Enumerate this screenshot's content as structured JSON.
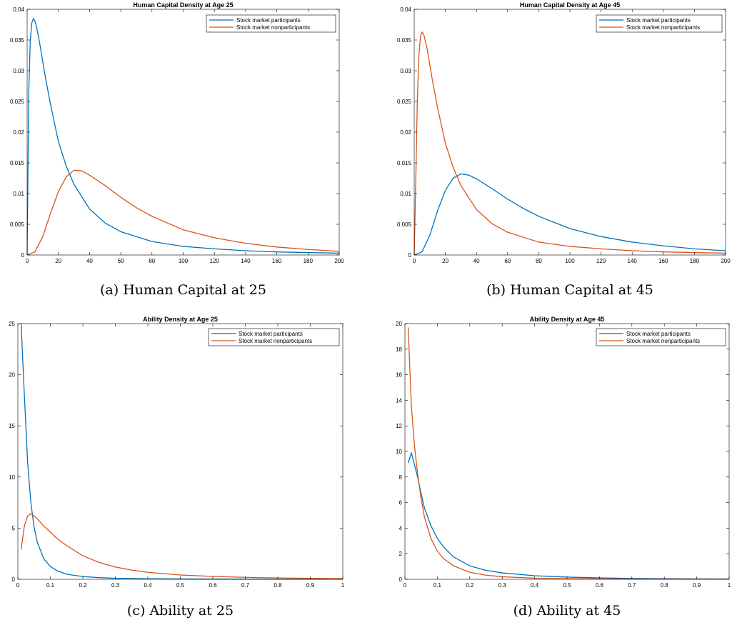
{
  "chart_data": [
    {
      "type": "line",
      "title": "Human Capital Density at Age 25",
      "caption": "(a) Human Capital at 25",
      "xlim": [
        0,
        200
      ],
      "ylim": [
        0,
        0.04
      ],
      "xticks": [
        0,
        20,
        40,
        60,
        80,
        100,
        120,
        140,
        160,
        180,
        200
      ],
      "yticks": [
        0,
        0.005,
        0.01,
        0.015,
        0.02,
        0.025,
        0.03,
        0.035,
        0.04
      ],
      "legend_position": "top-right",
      "series": [
        {
          "name": "Stock market participants",
          "color": "#0072BD",
          "x": [
            0,
            1,
            2,
            3,
            4,
            5,
            6,
            8,
            10,
            12,
            15,
            20,
            25,
            30,
            40,
            50,
            60,
            80,
            100,
            120,
            140,
            160,
            180,
            200
          ],
          "y": [
            0,
            0.026,
            0.035,
            0.0378,
            0.0385,
            0.0381,
            0.0372,
            0.0345,
            0.0315,
            0.0285,
            0.0245,
            0.0185,
            0.0145,
            0.0115,
            0.0075,
            0.0052,
            0.0038,
            0.0022,
            0.0014,
            0.001,
            0.0007,
            0.0005,
            0.0004,
            0.0003
          ]
        },
        {
          "name": "Stock market nonparticipants",
          "color": "#D95319",
          "x": [
            0,
            5,
            10,
            15,
            20,
            25,
            30,
            35,
            40,
            50,
            60,
            70,
            80,
            100,
            120,
            140,
            160,
            180,
            200
          ],
          "y": [
            0,
            0.0005,
            0.003,
            0.0068,
            0.0103,
            0.0127,
            0.0138,
            0.0137,
            0.013,
            0.0113,
            0.0094,
            0.0077,
            0.0063,
            0.0041,
            0.0028,
            0.0019,
            0.0013,
            0.0009,
            0.0006
          ]
        }
      ]
    },
    {
      "type": "line",
      "title": "Human Capital Density at Age 45",
      "caption": "(b) Human Capital at 45",
      "xlim": [
        0,
        200
      ],
      "ylim": [
        0,
        0.04
      ],
      "xticks": [
        0,
        20,
        40,
        60,
        80,
        100,
        120,
        140,
        160,
        180,
        200
      ],
      "yticks": [
        0,
        0.005,
        0.01,
        0.015,
        0.02,
        0.025,
        0.03,
        0.035,
        0.04
      ],
      "legend_position": "top-right",
      "series": [
        {
          "name": "Stock market participants",
          "color": "#0072BD",
          "x": [
            0,
            5,
            10,
            15,
            20,
            25,
            30,
            35,
            40,
            50,
            60,
            70,
            80,
            100,
            120,
            140,
            160,
            180,
            200
          ],
          "y": [
            0,
            0.0005,
            0.0032,
            0.0072,
            0.0105,
            0.0125,
            0.0132,
            0.013,
            0.0124,
            0.0108,
            0.0091,
            0.0076,
            0.0063,
            0.0043,
            0.003,
            0.0021,
            0.0015,
            0.001,
            0.0007
          ]
        },
        {
          "name": "Stock market nonparticipants",
          "color": "#D95319",
          "x": [
            0,
            1,
            2,
            3,
            4,
            5,
            6,
            8,
            10,
            12,
            15,
            20,
            25,
            30,
            40,
            50,
            60,
            80,
            100,
            120,
            140,
            160,
            180,
            200
          ],
          "y": [
            0,
            0.012,
            0.025,
            0.0325,
            0.0355,
            0.0363,
            0.036,
            0.034,
            0.031,
            0.028,
            0.024,
            0.0182,
            0.0143,
            0.0113,
            0.0074,
            0.0051,
            0.0037,
            0.0021,
            0.0014,
            0.001,
            0.0007,
            0.0005,
            0.0004,
            0.0003
          ]
        }
      ]
    },
    {
      "type": "line",
      "title": "Ability Density at Age 25",
      "caption": "(c) Ability at 25",
      "xlim": [
        0,
        1
      ],
      "ylim": [
        0,
        25
      ],
      "xticks": [
        0,
        0.1,
        0.2,
        0.3,
        0.4,
        0.5,
        0.6,
        0.7,
        0.8,
        0.9,
        1
      ],
      "yticks": [
        0,
        5,
        10,
        15,
        20,
        25
      ],
      "legend_position": "top-right",
      "series": [
        {
          "name": "Stock market participants",
          "color": "#0072BD",
          "x": [
            0.01,
            0.02,
            0.03,
            0.04,
            0.05,
            0.06,
            0.08,
            0.1,
            0.12,
            0.15,
            0.2,
            0.25,
            0.3,
            0.4,
            0.5,
            0.6,
            0.7,
            0.8,
            0.9,
            1
          ],
          "y": [
            25,
            18,
            11.5,
            7.5,
            5.1,
            3.6,
            2.0,
            1.25,
            0.85,
            0.5,
            0.27,
            0.16,
            0.1,
            0.05,
            0.03,
            0.02,
            0.015,
            0.01,
            0.008,
            0.006
          ]
        },
        {
          "name": "Stock market nonparticipants",
          "color": "#D95319",
          "x": [
            0.01,
            0.02,
            0.03,
            0.04,
            0.05,
            0.06,
            0.08,
            0.1,
            0.12,
            0.15,
            0.2,
            0.25,
            0.3,
            0.35,
            0.4,
            0.5,
            0.6,
            0.7,
            0.8,
            0.9,
            1
          ],
          "y": [
            2.9,
            5.2,
            6.2,
            6.4,
            6.2,
            5.9,
            5.2,
            4.6,
            4.0,
            3.3,
            2.3,
            1.65,
            1.2,
            0.9,
            0.68,
            0.42,
            0.28,
            0.19,
            0.13,
            0.09,
            0.06
          ]
        }
      ]
    },
    {
      "type": "line",
      "title": "Ability Density at Age 45",
      "caption": "(d) Ability at 45",
      "xlim": [
        0,
        1
      ],
      "ylim": [
        0,
        20
      ],
      "xticks": [
        0,
        0.1,
        0.2,
        0.3,
        0.4,
        0.5,
        0.6,
        0.7,
        0.8,
        0.9,
        1
      ],
      "yticks": [
        0,
        2,
        4,
        6,
        8,
        10,
        12,
        14,
        16,
        18,
        20
      ],
      "legend_position": "top-right",
      "series": [
        {
          "name": "Stock market participants",
          "color": "#0072BD",
          "x": [
            0.01,
            0.02,
            0.03,
            0.04,
            0.05,
            0.06,
            0.08,
            0.1,
            0.12,
            0.15,
            0.2,
            0.25,
            0.3,
            0.4,
            0.5,
            0.6,
            0.7,
            0.8,
            0.9,
            1
          ],
          "y": [
            9.1,
            9.9,
            8.9,
            7.9,
            6.7,
            5.6,
            4.2,
            3.2,
            2.5,
            1.75,
            1.05,
            0.7,
            0.5,
            0.28,
            0.17,
            0.11,
            0.07,
            0.05,
            0.035,
            0.025
          ]
        },
        {
          "name": "Stock market nonparticipants",
          "color": "#D95319",
          "x": [
            0.01,
            0.02,
            0.03,
            0.04,
            0.05,
            0.06,
            0.08,
            0.1,
            0.12,
            0.15,
            0.2,
            0.25,
            0.3,
            0.4,
            0.5,
            0.6,
            0.7,
            0.8,
            0.9,
            1
          ],
          "y": [
            19.7,
            13.5,
            10.3,
            8.1,
            6.3,
            4.9,
            3.2,
            2.2,
            1.6,
            1.05,
            0.55,
            0.32,
            0.2,
            0.09,
            0.05,
            0.03,
            0.02,
            0.015,
            0.01,
            0.008
          ]
        }
      ]
    }
  ]
}
